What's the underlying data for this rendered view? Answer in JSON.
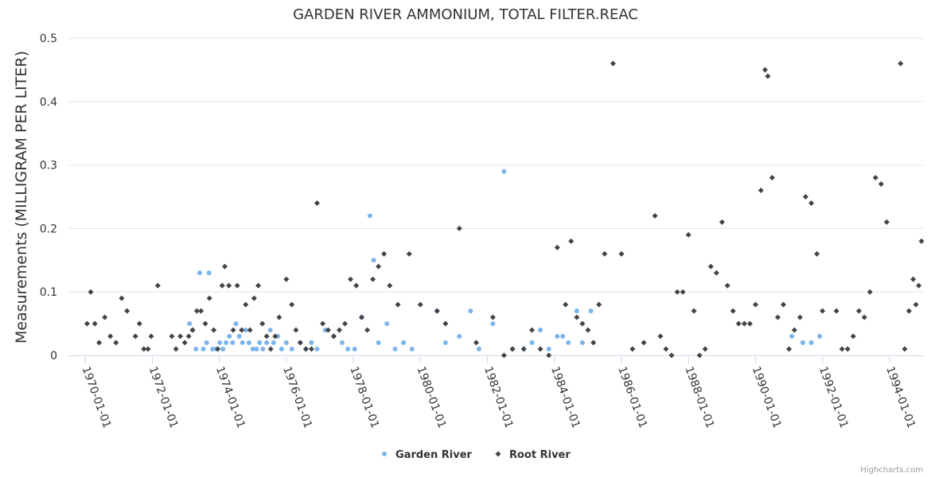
{
  "chart_data": {
    "type": "scatter",
    "title": "GARDEN RIVER AMMONIUM, TOTAL FILTER.REAC",
    "xlabel": "",
    "ylabel": "Measurements (MILLIGRAM PER LITER)",
    "xlim": [
      "1969-07-01",
      "1995-01-01"
    ],
    "ylim": [
      0,
      0.5
    ],
    "y_ticks": [
      0,
      0.1,
      0.2,
      0.3,
      0.4,
      0.5
    ],
    "y_tick_labels": [
      "0",
      "0.1",
      "0.2",
      "0.3",
      "0.4",
      "0.5"
    ],
    "x_ticks": [
      "1970-01-01",
      "1972-01-01",
      "1974-01-01",
      "1976-01-01",
      "1978-01-01",
      "1980-01-01",
      "1982-01-01",
      "1984-01-01",
      "1986-01-01",
      "1988-01-01",
      "1990-01-01",
      "1992-01-01",
      "1994-01-01"
    ],
    "grid": "horizontal",
    "legend_position": "bottom-center",
    "series": [
      {
        "name": "Garden River",
        "color": "#7cb5ec",
        "marker": "circle",
        "points": [
          [
            "1973-02-10",
            0.05
          ],
          [
            "1973-03-15",
            0.04
          ],
          [
            "1973-04-20",
            0.01
          ],
          [
            "1973-06-01",
            0.13
          ],
          [
            "1973-07-10",
            0.01
          ],
          [
            "1973-08-15",
            0.02
          ],
          [
            "1973-09-10",
            0.13
          ],
          [
            "1973-10-20",
            0.01
          ],
          [
            "1973-12-01",
            0.01
          ],
          [
            "1974-01-05",
            0.02
          ],
          [
            "1974-02-10",
            0.01
          ],
          [
            "1974-03-15",
            0.02
          ],
          [
            "1974-04-20",
            0.03
          ],
          [
            "1974-05-25",
            0.02
          ],
          [
            "1974-07-01",
            0.05
          ],
          [
            "1974-08-05",
            0.03
          ],
          [
            "1974-09-10",
            0.02
          ],
          [
            "1974-10-15",
            0.04
          ],
          [
            "1974-11-20",
            0.02
          ],
          [
            "1975-01-01",
            0.01
          ],
          [
            "1975-02-10",
            0.01
          ],
          [
            "1975-03-15",
            0.02
          ],
          [
            "1975-04-20",
            0.01
          ],
          [
            "1975-06-01",
            0.02
          ],
          [
            "1975-07-10",
            0.04
          ],
          [
            "1975-08-15",
            0.02
          ],
          [
            "1975-10-01",
            0.03
          ],
          [
            "1975-11-10",
            0.01
          ],
          [
            "1976-01-01",
            0.02
          ],
          [
            "1976-03-01",
            0.01
          ],
          [
            "1976-06-01",
            0.02
          ],
          [
            "1976-08-01",
            0.01
          ],
          [
            "1976-10-01",
            0.02
          ],
          [
            "1976-12-01",
            0.01
          ],
          [
            "1977-03-01",
            0.04
          ],
          [
            "1977-06-01",
            0.03
          ],
          [
            "1977-09-01",
            0.02
          ],
          [
            "1977-11-01",
            0.01
          ],
          [
            "1978-01-15",
            0.01
          ],
          [
            "1978-04-01",
            0.06
          ],
          [
            "1978-07-01",
            0.22
          ],
          [
            "1978-08-10",
            0.15
          ],
          [
            "1978-10-01",
            0.02
          ],
          [
            "1979-01-01",
            0.05
          ],
          [
            "1979-04-01",
            0.01
          ],
          [
            "1979-07-01",
            0.02
          ],
          [
            "1979-10-01",
            0.01
          ],
          [
            "1980-07-01",
            0.07
          ],
          [
            "1980-10-01",
            0.02
          ],
          [
            "1981-03-01",
            0.03
          ],
          [
            "1981-07-01",
            0.07
          ],
          [
            "1981-10-01",
            0.01
          ],
          [
            "1982-03-01",
            0.05
          ],
          [
            "1982-07-01",
            0.29
          ],
          [
            "1982-10-01",
            0.01
          ],
          [
            "1983-02-01",
            0.01
          ],
          [
            "1983-05-01",
            0.02
          ],
          [
            "1983-08-01",
            0.04
          ],
          [
            "1983-11-01",
            0.01
          ],
          [
            "1984-02-01",
            0.03
          ],
          [
            "1984-04-01",
            0.03
          ],
          [
            "1984-06-01",
            0.02
          ],
          [
            "1984-09-01",
            0.07
          ],
          [
            "1984-11-01",
            0.02
          ],
          [
            "1985-02-01",
            0.07
          ],
          [
            "1991-02-01",
            0.03
          ],
          [
            "1991-06-01",
            0.02
          ],
          [
            "1991-09-01",
            0.02
          ],
          [
            "1991-12-01",
            0.03
          ]
        ]
      },
      {
        "name": "Root River",
        "color": "#434348",
        "marker": "diamond",
        "points": [
          [
            "1970-01-20",
            0.05
          ],
          [
            "1970-03-01",
            0.1
          ],
          [
            "1970-04-15",
            0.05
          ],
          [
            "1970-06-01",
            0.02
          ],
          [
            "1970-08-01",
            0.06
          ],
          [
            "1970-10-01",
            0.03
          ],
          [
            "1970-12-01",
            0.02
          ],
          [
            "1971-02-01",
            0.09
          ],
          [
            "1971-04-01",
            0.07
          ],
          [
            "1971-07-01",
            0.03
          ],
          [
            "1971-08-15",
            0.05
          ],
          [
            "1971-10-01",
            0.01
          ],
          [
            "1971-11-15",
            0.01
          ],
          [
            "1971-12-20",
            0.03
          ],
          [
            "1972-03-01",
            0.11
          ],
          [
            "1972-08-01",
            0.03
          ],
          [
            "1972-09-15",
            0.01
          ],
          [
            "1972-11-01",
            0.03
          ],
          [
            "1972-12-20",
            0.02
          ],
          [
            "1973-02-01",
            0.03
          ],
          [
            "1973-03-15",
            0.04
          ],
          [
            "1973-05-01",
            0.07
          ],
          [
            "1973-06-15",
            0.07
          ],
          [
            "1973-08-01",
            0.05
          ],
          [
            "1973-09-15",
            0.09
          ],
          [
            "1973-11-01",
            0.04
          ],
          [
            "1973-12-15",
            0.01
          ],
          [
            "1974-02-01",
            0.11
          ],
          [
            "1974-03-01",
            0.14
          ],
          [
            "1974-04-15",
            0.11
          ],
          [
            "1974-06-01",
            0.04
          ],
          [
            "1974-07-15",
            0.11
          ],
          [
            "1974-09-01",
            0.04
          ],
          [
            "1974-10-15",
            0.08
          ],
          [
            "1974-12-01",
            0.04
          ],
          [
            "1975-01-15",
            0.09
          ],
          [
            "1975-03-01",
            0.11
          ],
          [
            "1975-04-15",
            0.05
          ],
          [
            "1975-06-01",
            0.03
          ],
          [
            "1975-07-15",
            0.01
          ],
          [
            "1975-09-01",
            0.03
          ],
          [
            "1975-10-15",
            0.06
          ],
          [
            "1976-01-01",
            0.12
          ],
          [
            "1976-03-01",
            0.08
          ],
          [
            "1976-04-15",
            0.04
          ],
          [
            "1976-06-01",
            0.02
          ],
          [
            "1976-08-01",
            0.01
          ],
          [
            "1976-10-01",
            0.01
          ],
          [
            "1976-12-01",
            0.24
          ],
          [
            "1977-02-01",
            0.05
          ],
          [
            "1977-04-01",
            0.04
          ],
          [
            "1977-06-01",
            0.03
          ],
          [
            "1977-08-01",
            0.04
          ],
          [
            "1977-10-01",
            0.05
          ],
          [
            "1977-12-01",
            0.12
          ],
          [
            "1978-02-01",
            0.11
          ],
          [
            "1978-04-01",
            0.06
          ],
          [
            "1978-06-01",
            0.04
          ],
          [
            "1978-08-01",
            0.12
          ],
          [
            "1978-10-01",
            0.14
          ],
          [
            "1978-12-01",
            0.16
          ],
          [
            "1979-02-01",
            0.11
          ],
          [
            "1979-05-01",
            0.08
          ],
          [
            "1979-09-01",
            0.16
          ],
          [
            "1980-01-01",
            0.08
          ],
          [
            "1980-07-01",
            0.07
          ],
          [
            "1980-10-01",
            0.05
          ],
          [
            "1981-03-01",
            0.2
          ],
          [
            "1981-09-01",
            0.02
          ],
          [
            "1982-03-01",
            0.06
          ],
          [
            "1982-07-01",
            0.0
          ],
          [
            "1982-10-01",
            0.01
          ],
          [
            "1983-02-01",
            0.01
          ],
          [
            "1983-05-01",
            0.04
          ],
          [
            "1983-08-01",
            0.01
          ],
          [
            "1983-11-01",
            0.0
          ],
          [
            "1984-02-01",
            0.17
          ],
          [
            "1984-05-01",
            0.08
          ],
          [
            "1984-07-01",
            0.18
          ],
          [
            "1984-09-01",
            0.06
          ],
          [
            "1984-11-01",
            0.05
          ],
          [
            "1985-01-01",
            0.04
          ],
          [
            "1985-03-01",
            0.02
          ],
          [
            "1985-05-01",
            0.08
          ],
          [
            "1985-07-01",
            0.16
          ],
          [
            "1985-10-01",
            0.46
          ],
          [
            "1986-01-01",
            0.16
          ],
          [
            "1986-05-01",
            0.01
          ],
          [
            "1986-09-01",
            0.02
          ],
          [
            "1987-01-01",
            0.22
          ],
          [
            "1987-03-01",
            0.03
          ],
          [
            "1987-05-01",
            0.01
          ],
          [
            "1987-07-01",
            0.0
          ],
          [
            "1987-09-01",
            0.1
          ],
          [
            "1987-11-01",
            0.1
          ],
          [
            "1988-01-01",
            0.19
          ],
          [
            "1988-03-01",
            0.07
          ],
          [
            "1988-05-01",
            0.0
          ],
          [
            "1988-07-01",
            0.01
          ],
          [
            "1988-09-01",
            0.14
          ],
          [
            "1988-11-01",
            0.13
          ],
          [
            "1989-01-01",
            0.21
          ],
          [
            "1989-03-01",
            0.11
          ],
          [
            "1989-05-01",
            0.07
          ],
          [
            "1989-07-01",
            0.05
          ],
          [
            "1989-09-01",
            0.05
          ],
          [
            "1989-11-01",
            0.05
          ],
          [
            "1990-01-01",
            0.08
          ],
          [
            "1990-03-01",
            0.26
          ],
          [
            "1990-04-15",
            0.45
          ],
          [
            "1990-05-15",
            0.44
          ],
          [
            "1990-07-01",
            0.28
          ],
          [
            "1990-09-01",
            0.06
          ],
          [
            "1990-11-01",
            0.08
          ],
          [
            "1991-01-01",
            0.01
          ],
          [
            "1991-03-01",
            0.04
          ],
          [
            "1991-05-01",
            0.06
          ],
          [
            "1991-07-01",
            0.25
          ],
          [
            "1991-09-01",
            0.24
          ],
          [
            "1991-11-01",
            0.16
          ],
          [
            "1992-01-01",
            0.07
          ],
          [
            "1992-06-01",
            0.07
          ],
          [
            "1992-08-01",
            0.01
          ],
          [
            "1992-10-01",
            0.01
          ],
          [
            "1992-12-01",
            0.03
          ],
          [
            "1993-02-01",
            0.07
          ],
          [
            "1993-04-01",
            0.06
          ],
          [
            "1993-06-01",
            0.1
          ],
          [
            "1993-08-01",
            0.28
          ],
          [
            "1993-10-01",
            0.27
          ],
          [
            "1993-12-01",
            0.21
          ],
          [
            "1994-05-01",
            0.46
          ],
          [
            "1994-06-15",
            0.01
          ],
          [
            "1994-08-01",
            0.07
          ],
          [
            "1994-09-15",
            0.12
          ],
          [
            "1994-10-15",
            0.08
          ],
          [
            "1994-11-15",
            0.11
          ],
          [
            "1994-12-15",
            0.18
          ]
        ]
      }
    ]
  },
  "credits": "Highcharts.com"
}
